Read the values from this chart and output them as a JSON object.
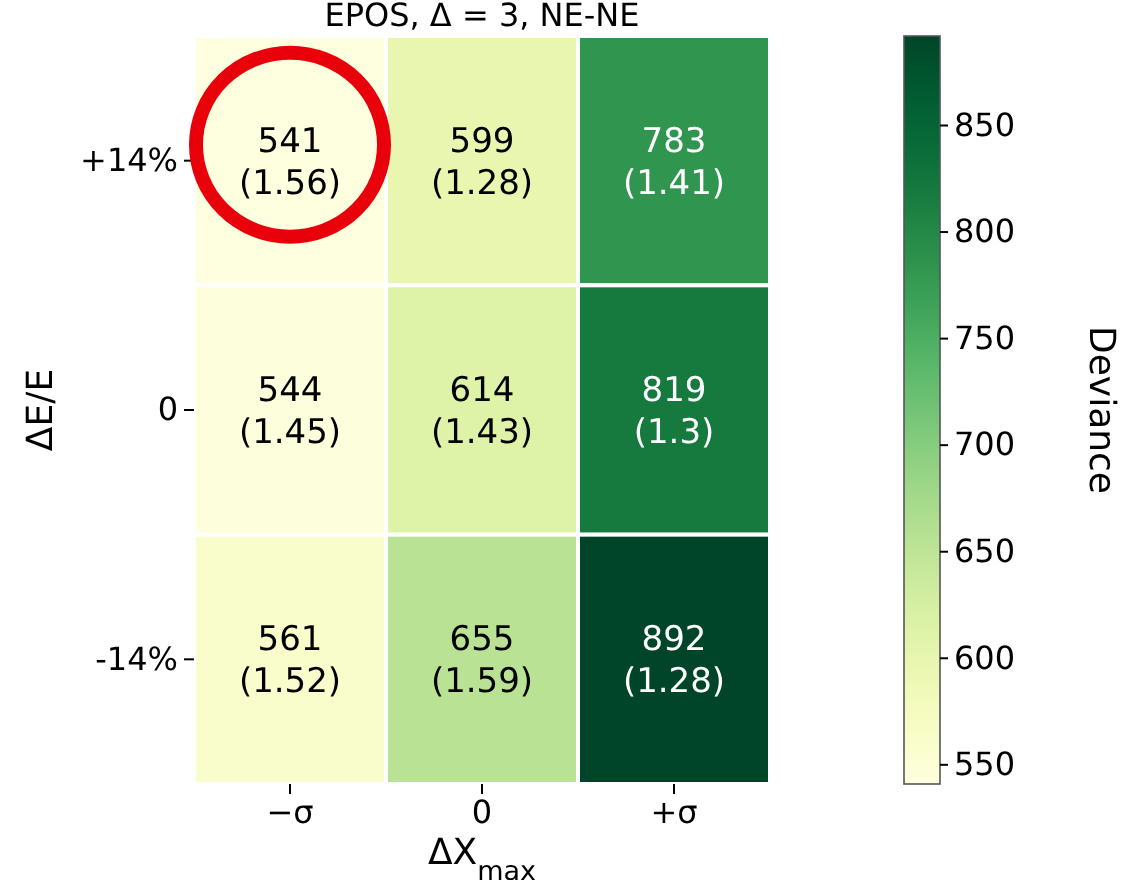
{
  "chart_data": {
    "type": "heatmap",
    "title": "EPOS, Δ = 3, NE-NE",
    "xlabel": "ΔX$_{max}$",
    "ylabel": "ΔE/E",
    "clabel": "Deviance",
    "categories": [
      "−σ",
      "0",
      "+σ"
    ],
    "y_categories": [
      "+14%",
      "0",
      "-14%"
    ],
    "cells": [
      [
        541,
        599,
        783
      ],
      [
        544,
        614,
        819
      ],
      [
        561,
        655,
        892
      ]
    ],
    "cell_labels": [
      [
        "541\n(1.56)",
        "599\n(1.28)",
        "783\n(1.41)"
      ],
      [
        "544\n(1.45)",
        "614\n(1.43)",
        "819\n(1.3)"
      ],
      [
        "561\n(1.52)",
        "655\n(1.59)",
        "892\n(1.28)"
      ]
    ],
    "clim": [
      541,
      892
    ],
    "cticks": [
      550,
      600,
      650,
      700,
      750,
      800,
      850
    ]
  }
}
